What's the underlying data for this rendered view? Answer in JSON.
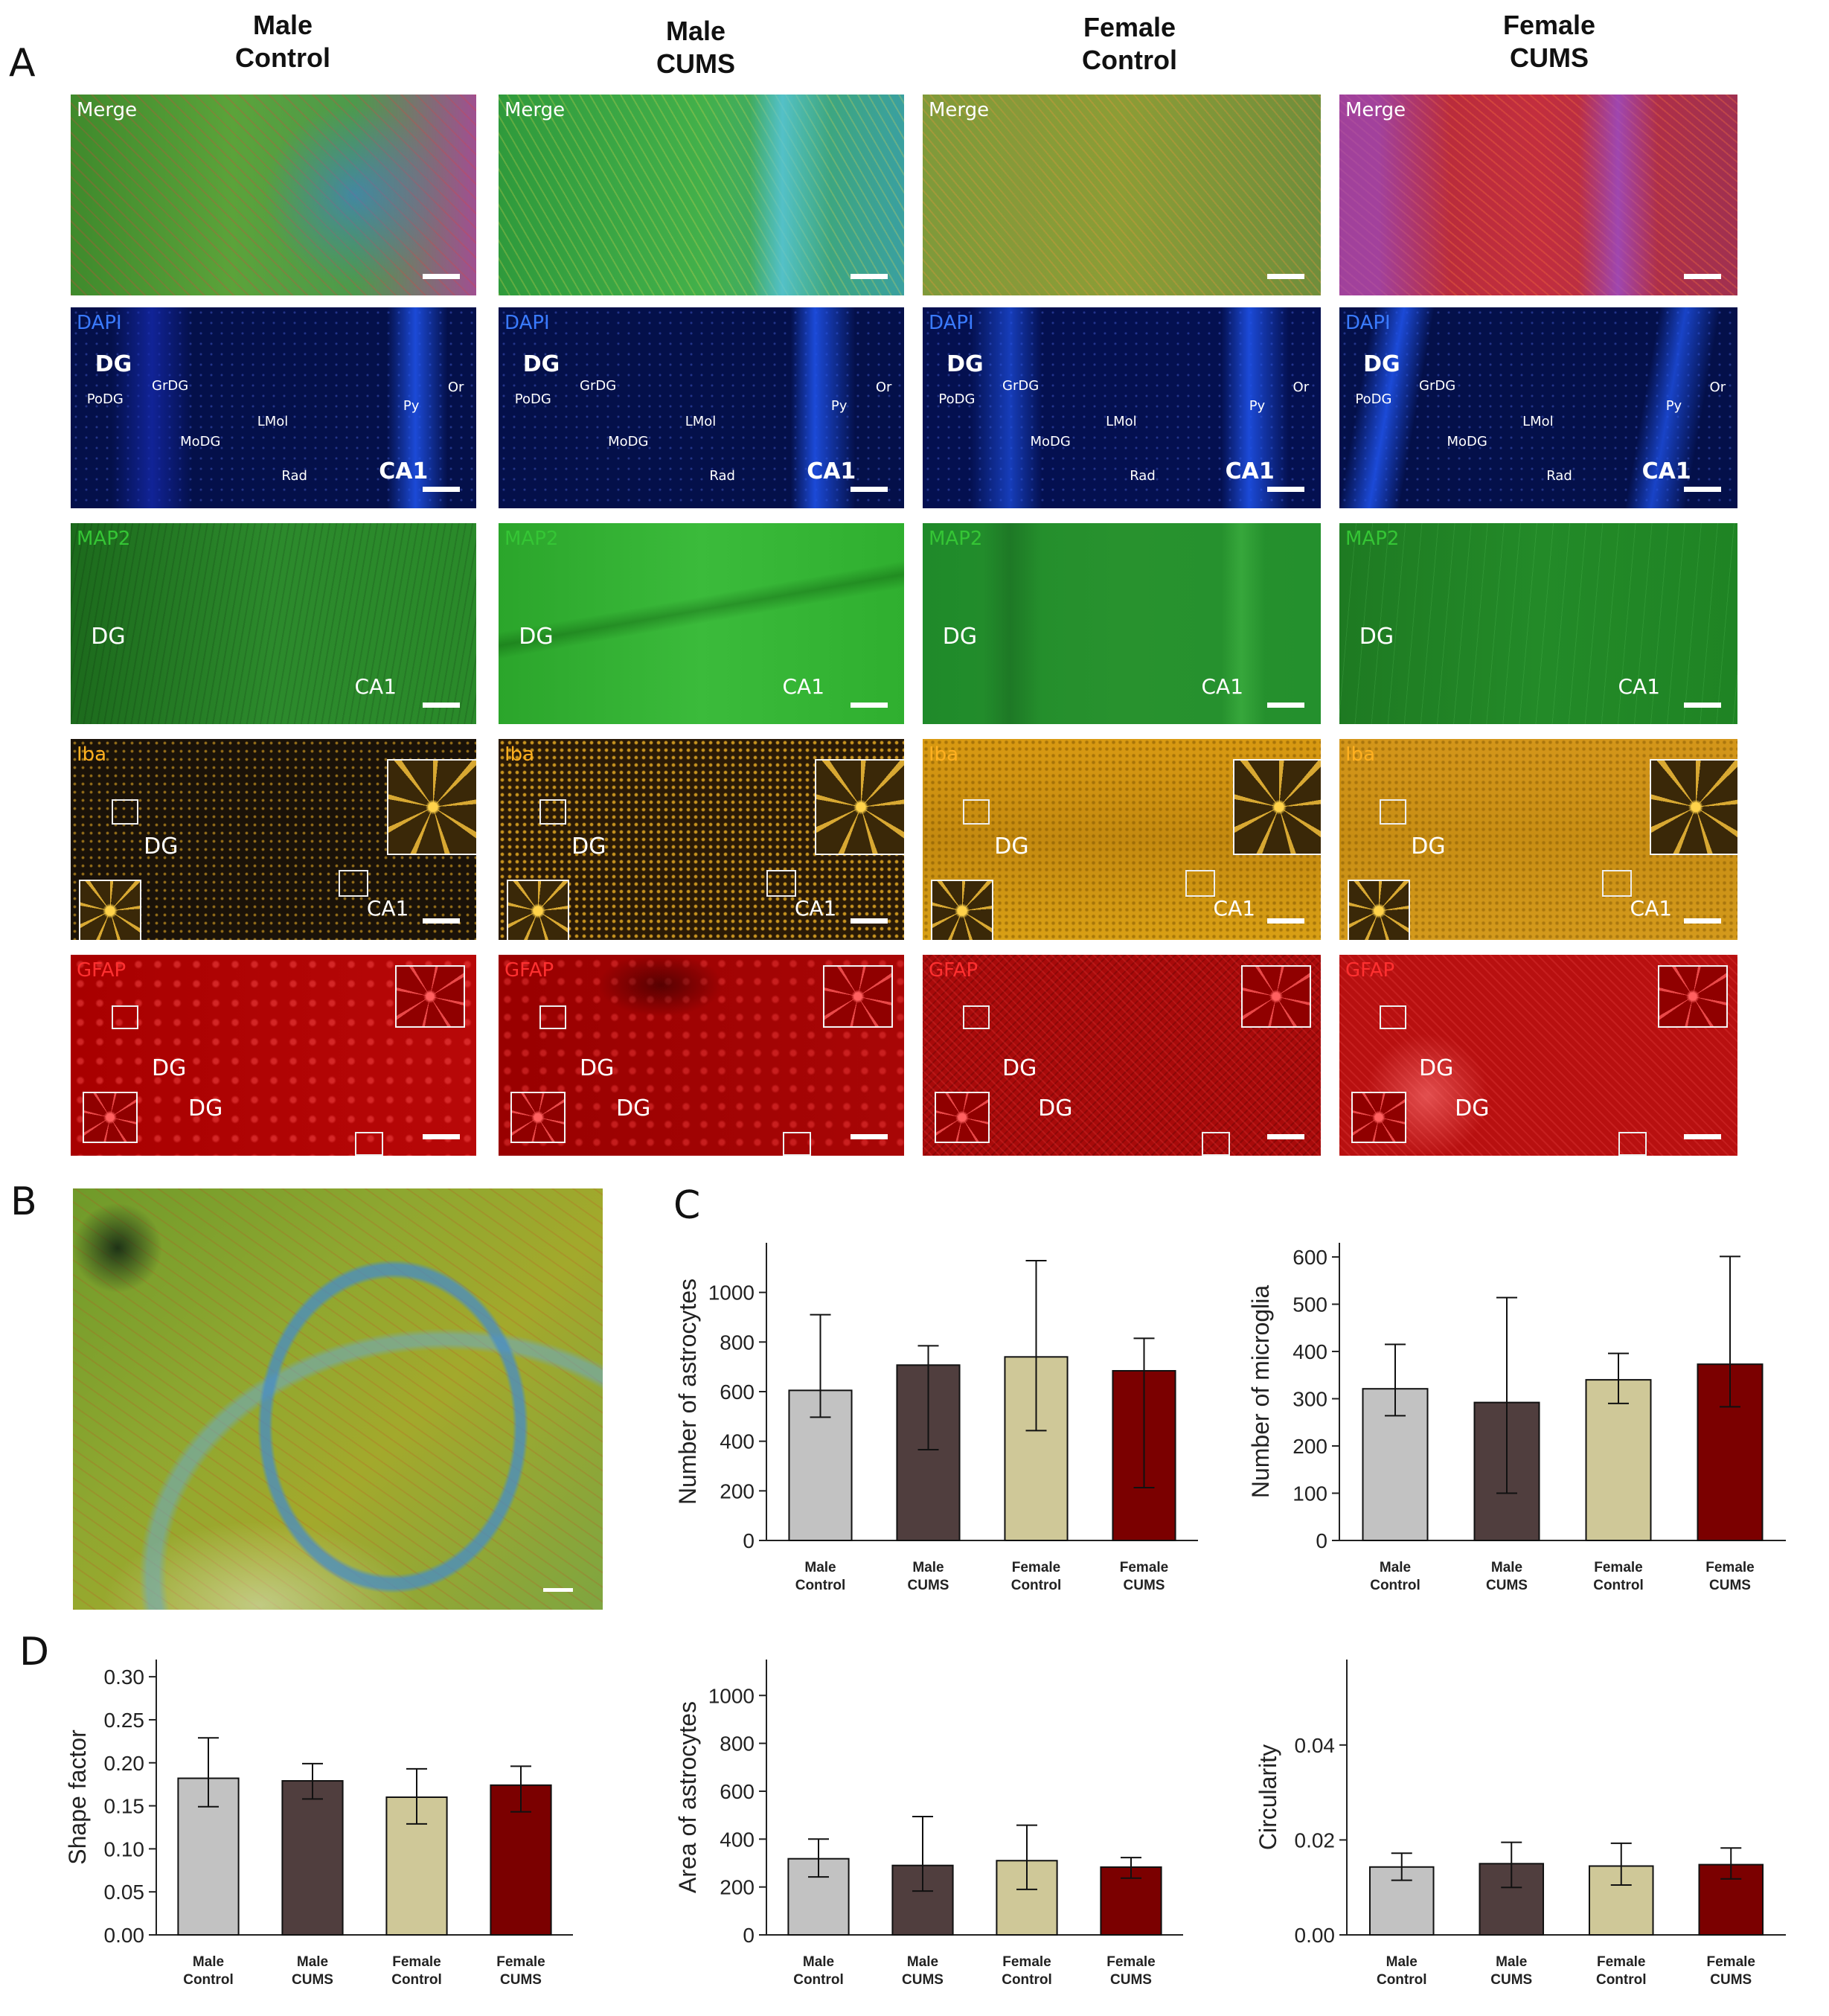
{
  "panel_letters": {
    "a": "A",
    "b": "B",
    "c": "C",
    "d": "D"
  },
  "columns": [
    {
      "line1": "Male",
      "line2": "Control"
    },
    {
      "line1": "Male",
      "line2": "CUMS"
    },
    {
      "line1": "Female",
      "line2": "Control"
    },
    {
      "line1": "Female",
      "line2": "CUMS"
    }
  ],
  "rows": [
    {
      "label": "Merge",
      "label_color": "#ffffff"
    },
    {
      "label": "DAPI",
      "label_color": "#3a7bff"
    },
    {
      "label": "MAP2",
      "label_color": "#35c535"
    },
    {
      "label": "Iba",
      "label_color": "#ffb020"
    },
    {
      "label": "GFAP",
      "label_color": "#ff3030"
    }
  ],
  "regions": {
    "dg": "DG",
    "ca1": "CA1",
    "podg": "PoDG",
    "grdg": "GrDG",
    "modg": "MoDG",
    "lmol": "LMol",
    "rad": "Rad",
    "py": "Py",
    "or": "Or"
  },
  "chart_data": [
    {
      "id": "c1",
      "type": "bar",
      "categories": [
        "Male Control",
        "Male CUMS",
        "Female Control",
        "Female CUMS"
      ],
      "category_lines": [
        [
          "Male",
          "Control"
        ],
        [
          "Male",
          "CUMS"
        ],
        [
          "Female",
          "Control"
        ],
        [
          "Female",
          "CUMS"
        ]
      ],
      "values": [
        605,
        707,
        740,
        684
      ],
      "error_low": [
        497,
        366,
        443,
        213
      ],
      "error_high": [
        910,
        785,
        1128,
        815
      ],
      "ylabel": "Number of  astrocytes",
      "ylim": [
        0,
        1200
      ],
      "yticks": [
        0,
        200,
        400,
        600,
        800,
        1000
      ],
      "colors": [
        "#c2c2c2",
        "#503e3e",
        "#cfc898",
        "#7b0000"
      ]
    },
    {
      "id": "c2",
      "type": "bar",
      "categories": [
        "Male Control",
        "Male CUMS",
        "Female Control",
        "Female CUMS"
      ],
      "category_lines": [
        [
          "Male",
          "Control"
        ],
        [
          "Male",
          "CUMS"
        ],
        [
          "Female",
          "Control"
        ],
        [
          "Female",
          "CUMS"
        ]
      ],
      "values": [
        321,
        292,
        340,
        373
      ],
      "error_low": [
        264,
        100,
        290,
        283
      ],
      "error_high": [
        415,
        514,
        396,
        601
      ],
      "ylabel": "Number of  microglia",
      "ylim": [
        0,
        630
      ],
      "yticks": [
        0,
        100,
        200,
        300,
        400,
        500,
        600
      ],
      "colors": [
        "#c2c2c2",
        "#503e3e",
        "#cfc898",
        "#7b0000"
      ]
    },
    {
      "id": "d1",
      "type": "bar",
      "categories": [
        "Male Control",
        "Male CUMS",
        "Female Control",
        "Female CUMS"
      ],
      "category_lines": [
        [
          "Male",
          "Control"
        ],
        [
          "Male",
          "CUMS"
        ],
        [
          "Female",
          "Control"
        ],
        [
          "Female",
          "CUMS"
        ]
      ],
      "values": [
        0.182,
        0.179,
        0.16,
        0.174
      ],
      "error_low": [
        0.149,
        0.158,
        0.129,
        0.143
      ],
      "error_high": [
        0.229,
        0.199,
        0.193,
        0.196
      ],
      "ylabel": "Shape factor",
      "ylim": [
        0,
        0.32
      ],
      "yticks": [
        0.0,
        0.05,
        0.1,
        0.15,
        0.2,
        0.25,
        0.3
      ],
      "ytick_labels": [
        "0.00",
        "0.05",
        "0.10",
        "0.15",
        "0.20",
        "0.25",
        "0.30"
      ],
      "colors": [
        "#c2c2c2",
        "#503e3e",
        "#cfc898",
        "#7b0000"
      ]
    },
    {
      "id": "d2",
      "type": "bar",
      "categories": [
        "Male Control",
        "Male CUMS",
        "Female Control",
        "Female CUMS"
      ],
      "category_lines": [
        [
          "Male",
          "Control"
        ],
        [
          "Male",
          "CUMS"
        ],
        [
          "Female",
          "Control"
        ],
        [
          "Female",
          "CUMS"
        ]
      ],
      "values": [
        318,
        290,
        310,
        283
      ],
      "error_low": [
        242,
        183,
        190,
        237
      ],
      "error_high": [
        400,
        494,
        458,
        323
      ],
      "ylabel": "Area of astrocytes",
      "ylim": [
        0,
        1150
      ],
      "yticks": [
        0,
        200,
        400,
        600,
        800,
        1000
      ],
      "colors": [
        "#c2c2c2",
        "#503e3e",
        "#cfc898",
        "#7b0000"
      ]
    },
    {
      "id": "d3",
      "type": "bar",
      "categories": [
        "Male Control",
        "Male CUMS",
        "Female Control",
        "Female CUMS"
      ],
      "category_lines": [
        [
          "Male",
          "Control"
        ],
        [
          "Male",
          "CUMS"
        ],
        [
          "Female",
          "Control"
        ],
        [
          "Female",
          "CUMS"
        ]
      ],
      "values": [
        0.0143,
        0.015,
        0.0145,
        0.0148
      ],
      "error_low": [
        0.0115,
        0.01,
        0.0105,
        0.0118
      ],
      "error_high": [
        0.0172,
        0.0195,
        0.0193,
        0.0183
      ],
      "ylabel": "Circularity",
      "ylim": [
        0,
        0.058
      ],
      "yticks": [
        0.0,
        0.02,
        0.04
      ],
      "ytick_labels": [
        "0.00",
        "0.02",
        "0.04"
      ],
      "colors": [
        "#c2c2c2",
        "#503e3e",
        "#cfc898",
        "#7b0000"
      ]
    }
  ]
}
